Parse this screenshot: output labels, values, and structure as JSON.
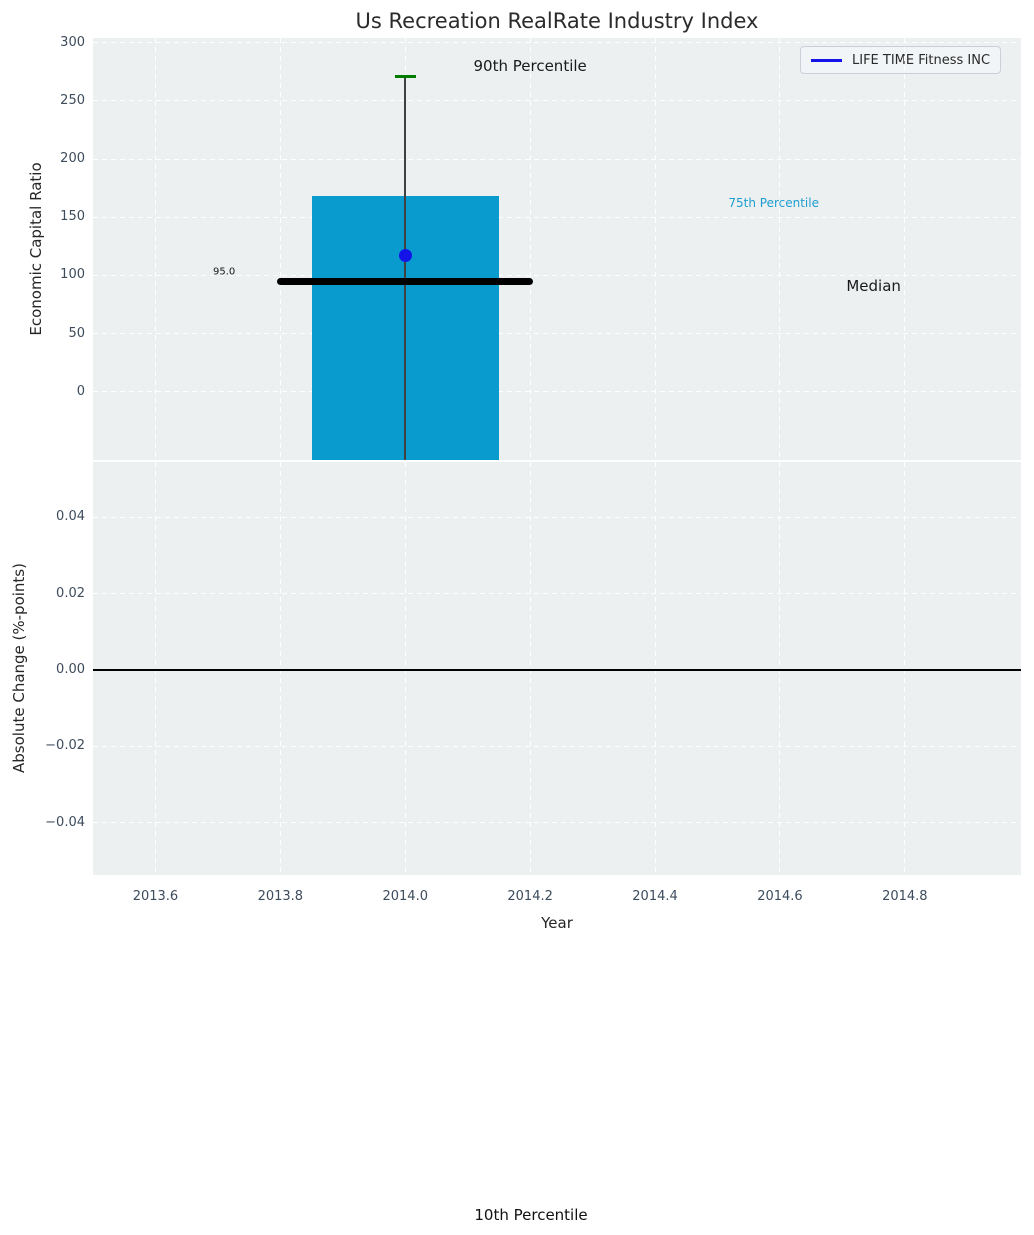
{
  "figure": {
    "title": "Us Recreation RealRate Industry Index",
    "xlabel": "Year",
    "outside_annotation": "10th Percentile"
  },
  "legend": {
    "label": "LIFE TIME Fitness INC",
    "position": "upper right"
  },
  "colors": {
    "axes_bg": "#ecf0f1",
    "grid": "#ffffff",
    "tick_label": "#3d4c5d",
    "bar": "#0a9bce",
    "median_line": "#000000",
    "whisker": "#404040",
    "p90_cap": "#007d00",
    "company_point": "#1414e8",
    "percentile_text": "#1e9ed1",
    "annotation_text": "#1a1a1a",
    "zero_line": "#000000"
  },
  "chart_data": [
    {
      "type": "bar",
      "panel": "economic-capital-ratio",
      "ylabel": "Economic Capital Ratio",
      "xlim": [
        2013.5,
        2014.986
      ],
      "ylim": [
        -58.7,
        304
      ],
      "grid": true,
      "show_x_tick_labels": false,
      "xticks": [
        {
          "value": 2013.6,
          "label": "2013.6"
        },
        {
          "value": 2013.8,
          "label": "2013.8"
        },
        {
          "value": 2014.0,
          "label": "2014.0"
        },
        {
          "value": 2014.2,
          "label": "2014.2"
        },
        {
          "value": 2014.4,
          "label": "2014.4"
        },
        {
          "value": 2014.6,
          "label": "2014.6"
        },
        {
          "value": 2014.8,
          "label": "2014.8"
        }
      ],
      "yticks": [
        {
          "value": 300,
          "label": "300"
        },
        {
          "value": 250,
          "label": "250"
        },
        {
          "value": 200,
          "label": "200"
        },
        {
          "value": 150,
          "label": "150"
        },
        {
          "value": 100,
          "label": "100"
        },
        {
          "value": 50,
          "label": "50"
        },
        {
          "value": 0,
          "label": "0"
        }
      ],
      "percentile_bar": {
        "x_center": 2014.0,
        "width": 0.3,
        "top_p75": 168,
        "bottom_clipped_below_axis": true
      },
      "whisker": {
        "x": 2014.0,
        "top": 271,
        "extends_to_axis_bottom": true
      },
      "p90_cap": {
        "x": 2014.0,
        "value": 271,
        "half_width": 0.017
      },
      "median_line": {
        "value": 95.0,
        "x_from": 2013.795,
        "x_to": 2014.205
      },
      "company_point": {
        "x": 2014.0,
        "y": 117
      },
      "annotations": [
        {
          "text": "90th Percentile",
          "x": 2014.2,
          "y": 280,
          "size": 15,
          "color": "#1a1a1a"
        },
        {
          "text": "75th Percentile",
          "x": 2014.59,
          "y": 162,
          "size": 12,
          "color": "#1e9ed1"
        },
        {
          "text": "Median",
          "x": 2014.75,
          "y": 91,
          "size": 15,
          "color": "#1a1a1a"
        },
        {
          "text": "95.0",
          "x": 2013.71,
          "y": 103,
          "size": 10,
          "color": "#1a1a1a"
        }
      ]
    },
    {
      "type": "line",
      "panel": "absolute-change",
      "ylabel": "Absolute Change (%-points)",
      "xlim": [
        2013.5,
        2014.986
      ],
      "ylim": [
        -0.0537,
        0.0545
      ],
      "grid": true,
      "show_x_tick_labels": true,
      "xticks": [
        {
          "value": 2013.6,
          "label": "2013.6"
        },
        {
          "value": 2013.8,
          "label": "2013.8"
        },
        {
          "value": 2014.0,
          "label": "2014.0"
        },
        {
          "value": 2014.2,
          "label": "2014.2"
        },
        {
          "value": 2014.4,
          "label": "2014.4"
        },
        {
          "value": 2014.6,
          "label": "2014.6"
        },
        {
          "value": 2014.8,
          "label": "2014.8"
        }
      ],
      "yticks": [
        {
          "value": 0.04,
          "label": "0.04"
        },
        {
          "value": 0.02,
          "label": "0.02"
        },
        {
          "value": 0.0,
          "label": "0.00"
        },
        {
          "value": -0.02,
          "label": "−0.02"
        },
        {
          "value": -0.04,
          "label": "−0.04"
        }
      ],
      "zero_line": 0.0,
      "series": []
    }
  ]
}
